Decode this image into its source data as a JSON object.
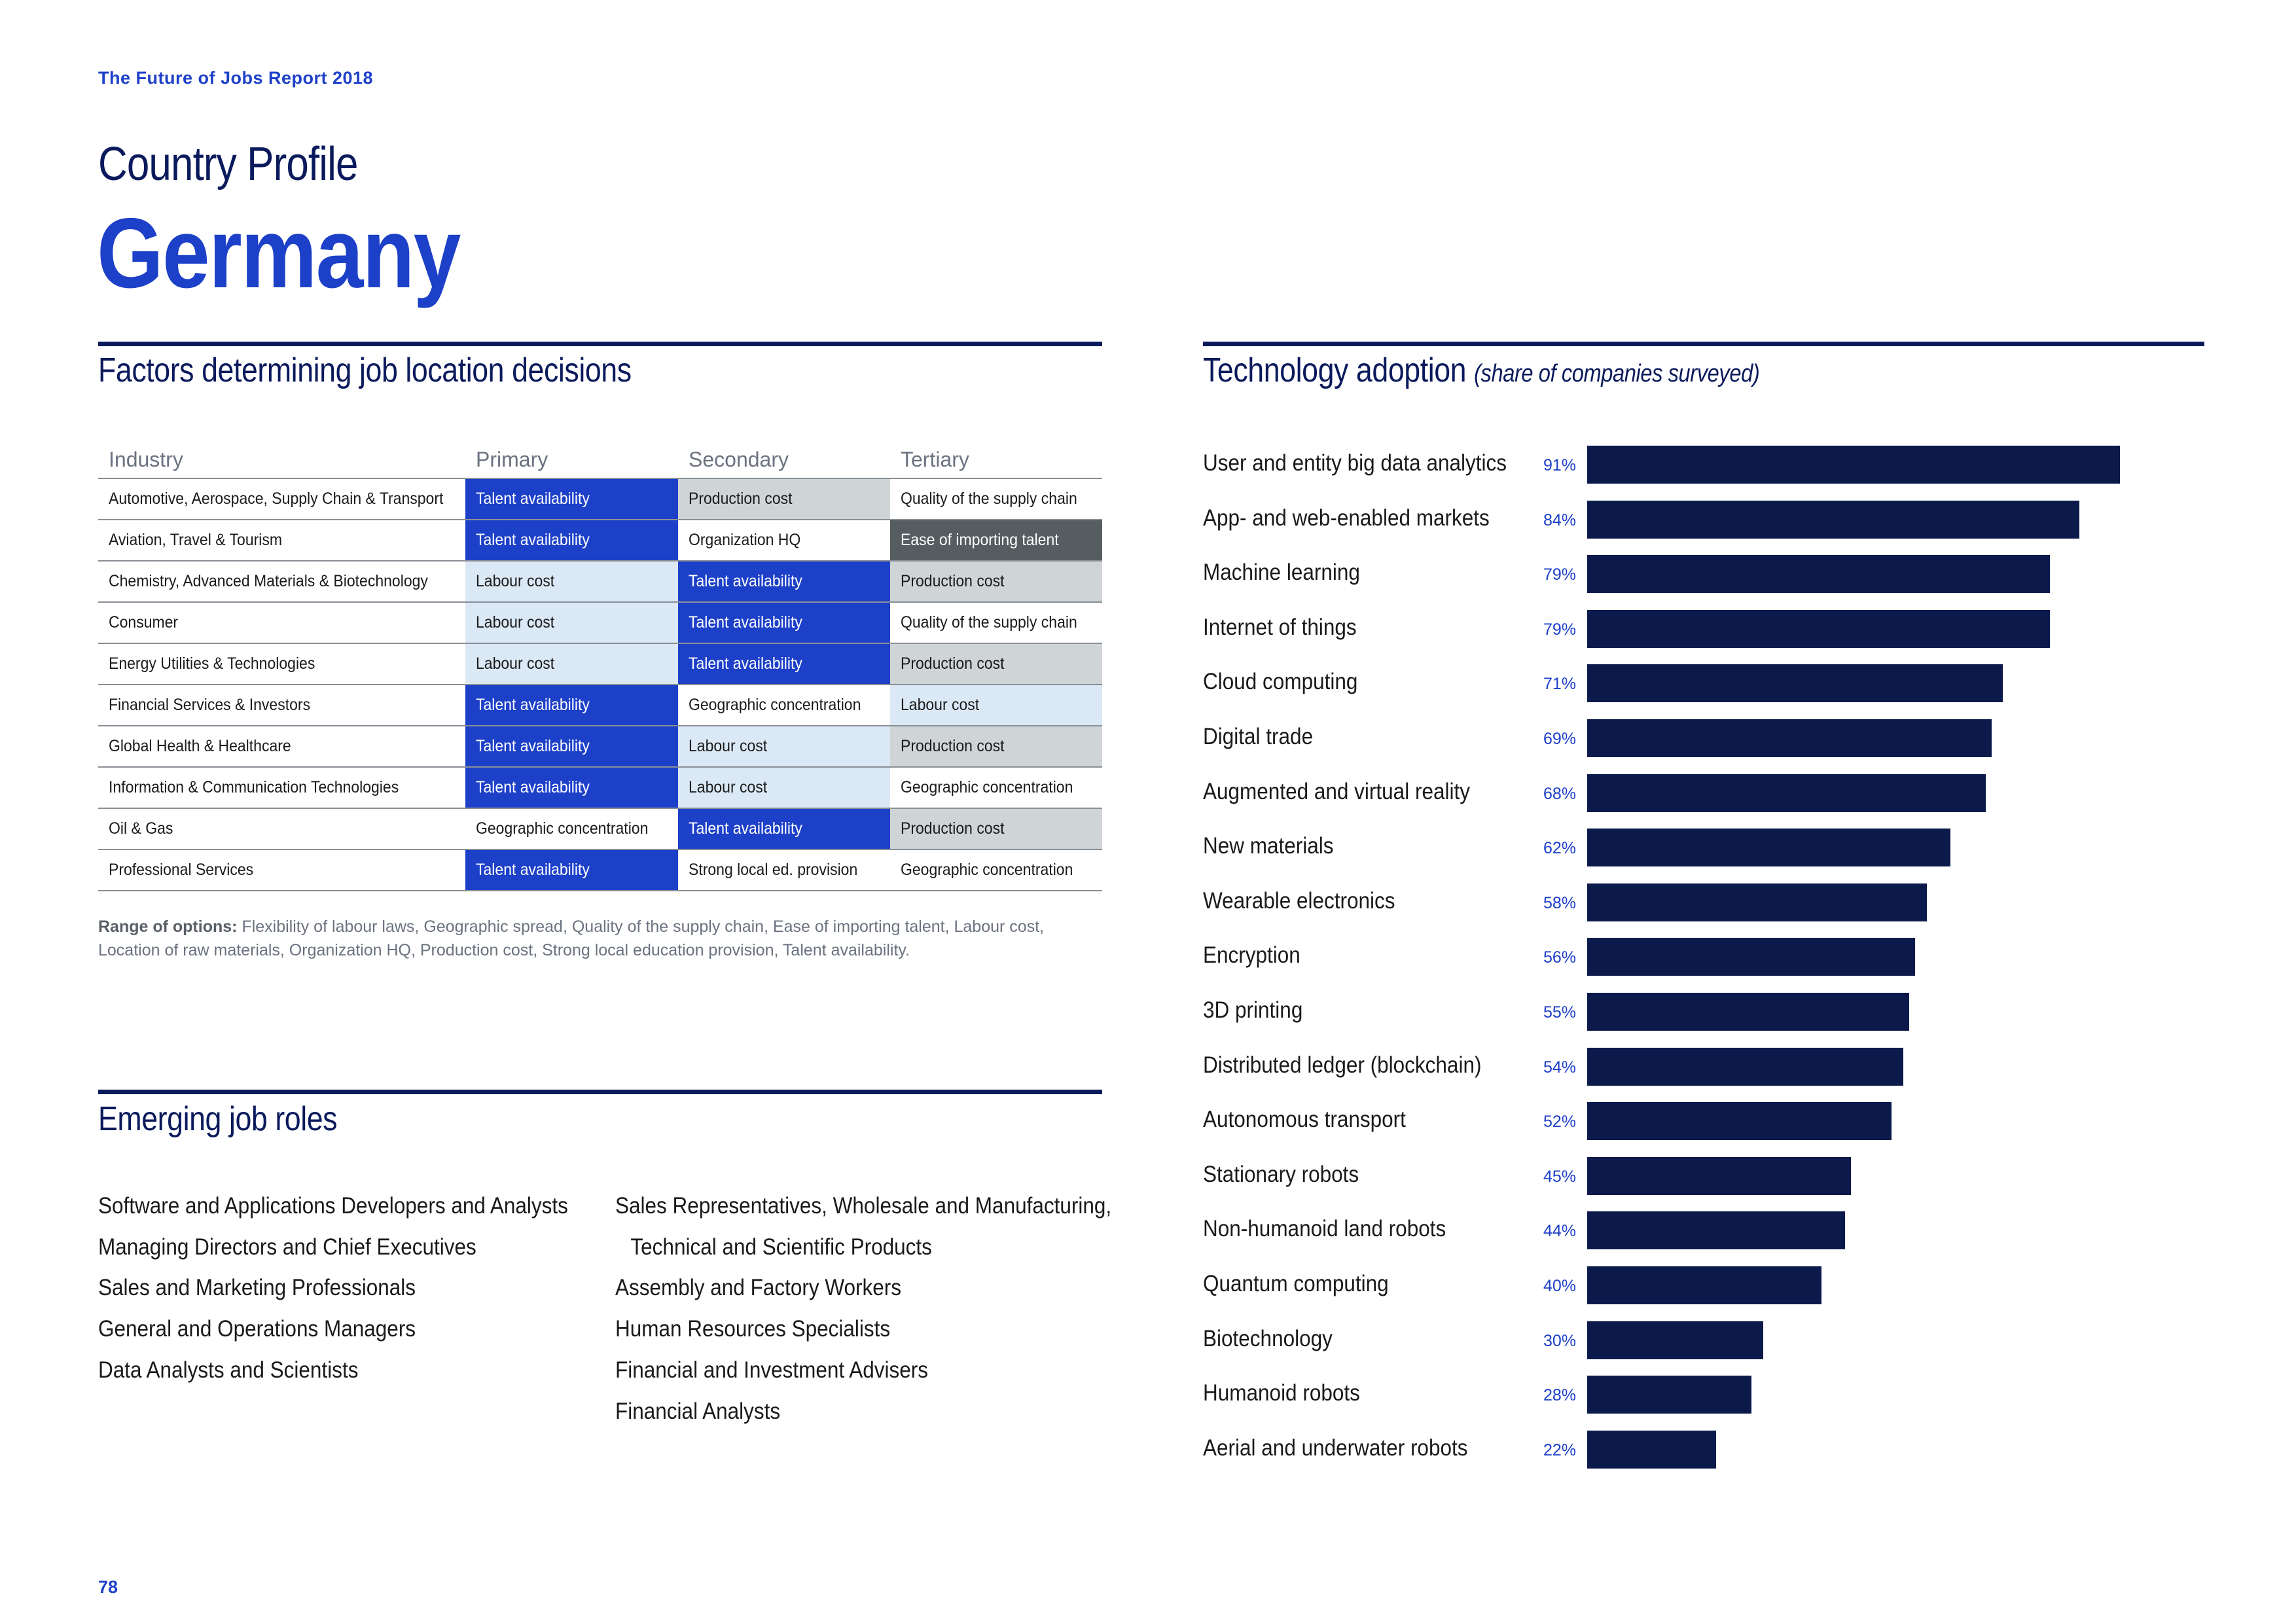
{
  "header": {
    "report_title": "The Future of Jobs Report 2018",
    "profile_label": "Country Profile",
    "country": "Germany"
  },
  "factors": {
    "title": "Factors determining job location decisions",
    "columns": [
      "Industry",
      "Primary",
      "Secondary",
      "Tertiary"
    ],
    "rows": [
      {
        "industry": "Automotive, Aerospace, Supply Chain & Transport",
        "primary": "Talent availability",
        "secondary": "Production cost",
        "tertiary": "Quality of the supply chain"
      },
      {
        "industry": "Aviation, Travel & Tourism",
        "primary": "Talent availability",
        "secondary": "Organization HQ",
        "tertiary": "Ease of importing talent"
      },
      {
        "industry": "Chemistry, Advanced Materials & Biotechnology",
        "primary": "Labour cost",
        "secondary": "Talent availability",
        "tertiary": "Production cost"
      },
      {
        "industry": "Consumer",
        "primary": "Labour cost",
        "secondary": "Talent availability",
        "tertiary": "Quality of the supply chain"
      },
      {
        "industry": "Energy Utilities & Technologies",
        "primary": "Labour cost",
        "secondary": "Talent availability",
        "tertiary": "Production cost"
      },
      {
        "industry": "Financial Services & Investors",
        "primary": "Talent availability",
        "secondary": "Geographic concentration",
        "tertiary": "Labour cost"
      },
      {
        "industry": "Global Health & Healthcare",
        "primary": "Talent availability",
        "secondary": "Labour cost",
        "tertiary": "Production cost"
      },
      {
        "industry": "Information & Communication Technologies",
        "primary": "Talent availability",
        "secondary": "Labour cost",
        "tertiary": "Geographic concentration"
      },
      {
        "industry": "Oil & Gas",
        "primary": "Geographic concentration",
        "secondary": "Talent availability",
        "tertiary": "Production cost"
      },
      {
        "industry": "Professional Services",
        "primary": "Talent availability",
        "secondary": "Strong local ed. provision",
        "tertiary": "Geographic concentration"
      }
    ],
    "range_label": "Range of options:",
    "range_text": "Flexibility of labour laws, Geographic spread, Quality of the supply chain, Ease of importing talent, Labour cost, Location of raw materials, Organization HQ, Production cost, Strong local education provision, Talent availability."
  },
  "roles": {
    "title": "Emerging job roles",
    "left": [
      "Software and Applications Developers and Analysts",
      "Managing Directors and Chief Executives",
      "Sales and Marketing Professionals",
      "General and Operations Managers",
      "Data Analysts and Scientists"
    ],
    "right": [
      "Sales Representatives, Wholesale and Manufacturing,",
      "Technical and Scientific Products",
      "Assembly and Factory Workers",
      "Human Resources Specialists",
      "Financial and Investment Advisers",
      "Financial Analysts"
    ]
  },
  "chart_data": {
    "type": "bar",
    "orientation": "horizontal",
    "title": "Technology adoption",
    "subtitle": "(share of companies surveyed)",
    "unit": "%",
    "xlim": [
      0,
      100
    ],
    "bar_color": "#0b1a4a",
    "categories": [
      "User and entity big data analytics",
      "App- and web-enabled markets",
      "Machine learning",
      "Internet of things",
      "Cloud computing",
      "Digital trade",
      "Augmented and virtual reality",
      "New materials",
      "Wearable electronics",
      "Encryption",
      "3D printing",
      "Distributed ledger (blockchain)",
      "Autonomous transport",
      "Stationary robots",
      "Non-humanoid land robots",
      "Quantum computing",
      "Biotechnology",
      "Humanoid robots",
      "Aerial and underwater robots"
    ],
    "values": [
      91,
      84,
      79,
      79,
      71,
      69,
      68,
      62,
      58,
      56,
      55,
      54,
      52,
      45,
      44,
      40,
      30,
      28,
      22
    ],
    "value_labels": [
      "91%",
      "84%",
      "79%",
      "79%",
      "71%",
      "69%",
      "68%",
      "62%",
      "58%",
      "56%",
      "55%",
      "54%",
      "52%",
      "45%",
      "44%",
      "40%",
      "30%",
      "28%",
      "22%"
    ]
  },
  "footer": {
    "page_number": "78"
  }
}
